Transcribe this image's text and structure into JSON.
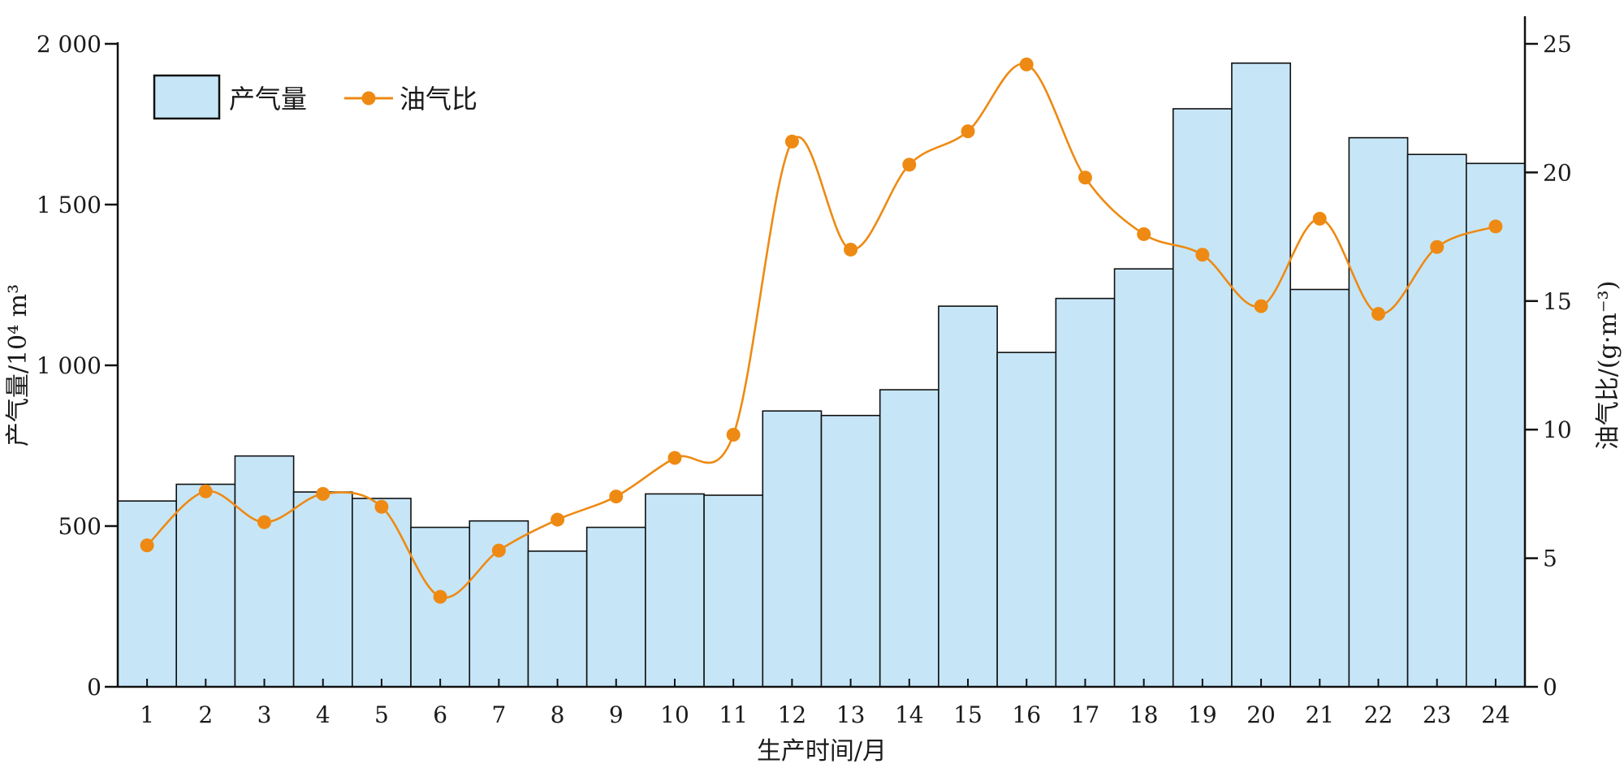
{
  "chart_data": {
    "type": "bar",
    "categories": [
      "1",
      "2",
      "3",
      "4",
      "5",
      "6",
      "7",
      "8",
      "9",
      "10",
      "11",
      "12",
      "13",
      "14",
      "15",
      "16",
      "17",
      "18",
      "19",
      "20",
      "21",
      "22",
      "23",
      "24"
    ],
    "xlabel": "生产时间/月",
    "ylabel_left": "产气量/10⁴ m³",
    "ylabel_right": "油气比/(g·m⁻³)",
    "ylim_left": [
      0,
      2000
    ],
    "ylim_right": [
      0,
      25
    ],
    "yticks_left": [
      "0",
      "500",
      "1 000",
      "1 500",
      "2 000"
    ],
    "yticks_right": [
      "0",
      "5",
      "10",
      "15",
      "20",
      "25"
    ],
    "grid": false,
    "legend_position": "top-left",
    "series": [
      {
        "name": "产气量",
        "type": "bar",
        "axis": "left",
        "color": "#c6e6f8",
        "values": [
          578,
          630,
          718,
          606,
          586,
          496,
          516,
          422,
          496,
          600,
          596,
          858,
          844,
          924,
          1184,
          1040,
          1208,
          1300,
          1798,
          1940,
          1236,
          1708,
          1656,
          1628
        ]
      },
      {
        "name": "油气比",
        "type": "line",
        "axis": "right",
        "color": "#ee8a13",
        "values": [
          5.5,
          7.6,
          6.4,
          7.5,
          7.0,
          3.5,
          5.3,
          6.5,
          7.4,
          8.9,
          9.8,
          21.2,
          17.0,
          20.3,
          21.6,
          24.2,
          19.8,
          17.6,
          16.8,
          14.8,
          18.2,
          14.5,
          17.1,
          17.9
        ]
      }
    ]
  }
}
